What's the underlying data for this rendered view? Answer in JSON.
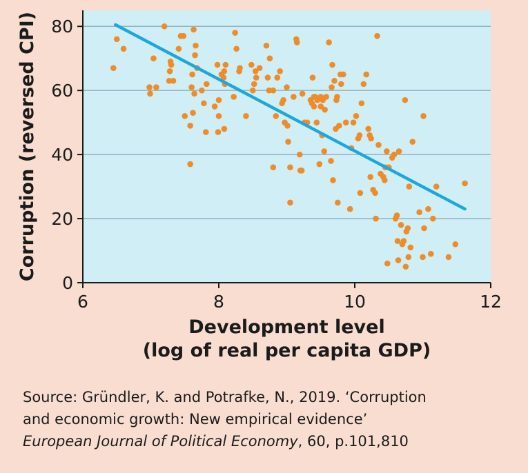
{
  "chart_data": {
    "type": "scatter",
    "xlabel_lines": [
      "Development level",
      "(log of real per capita GDP)"
    ],
    "ylabel": "Corruption (reversed CPI)",
    "xlim": [
      6,
      12
    ],
    "ylim": [
      0,
      85
    ],
    "xticks": [
      6,
      8,
      10,
      12
    ],
    "yticks": [
      0,
      20,
      40,
      60,
      80
    ],
    "grid": "horizontal",
    "colors": {
      "plot_bg": "#cfeef6",
      "points": "#ee8c2a",
      "trend": "#1ea7dd",
      "page_bg": "#f9ddd0"
    },
    "trend_line": {
      "x": [
        6.48,
        11.62
      ],
      "y": [
        80.5,
        23
      ]
    },
    "points": [
      [
        6.45,
        67
      ],
      [
        6.5,
        76
      ],
      [
        6.6,
        73
      ],
      [
        6.98,
        61
      ],
      [
        6.99,
        59
      ],
      [
        7.04,
        70
      ],
      [
        7.08,
        61
      ],
      [
        7.2,
        80
      ],
      [
        7.27,
        63
      ],
      [
        7.28,
        66
      ],
      [
        7.3,
        68
      ],
      [
        7.29,
        69
      ],
      [
        7.33,
        63
      ],
      [
        7.41,
        73
      ],
      [
        7.44,
        77
      ],
      [
        7.48,
        77
      ],
      [
        7.5,
        52
      ],
      [
        7.58,
        37
      ],
      [
        7.6,
        61
      ],
      [
        7.61,
        65
      ],
      [
        7.58,
        49
      ],
      [
        7.63,
        79
      ],
      [
        7.64,
        59
      ],
      [
        7.65,
        71
      ],
      [
        7.66,
        74
      ],
      [
        7.68,
        67
      ],
      [
        7.62,
        53
      ],
      [
        7.75,
        60
      ],
      [
        7.78,
        56
      ],
      [
        7.81,
        47
      ],
      [
        7.82,
        62
      ],
      [
        7.94,
        55
      ],
      [
        7.98,
        68
      ],
      [
        7.99,
        47
      ],
      [
        8.0,
        57
      ],
      [
        8.0,
        52
      ],
      [
        8.04,
        65
      ],
      [
        8.07,
        64
      ],
      [
        8.08,
        66
      ],
      [
        8.08,
        48
      ],
      [
        8.09,
        62
      ],
      [
        8.1,
        68
      ],
      [
        8.22,
        58
      ],
      [
        8.24,
        78
      ],
      [
        8.26,
        73
      ],
      [
        8.3,
        66
      ],
      [
        8.31,
        67
      ],
      [
        8.4,
        52
      ],
      [
        8.48,
        68
      ],
      [
        8.5,
        60
      ],
      [
        8.52,
        62
      ],
      [
        8.54,
        66
      ],
      [
        8.55,
        64
      ],
      [
        8.6,
        67
      ],
      [
        8.7,
        74
      ],
      [
        8.72,
        64
      ],
      [
        8.74,
        60
      ],
      [
        8.75,
        70
      ],
      [
        8.8,
        60
      ],
      [
        8.8,
        36
      ],
      [
        8.84,
        52
      ],
      [
        8.86,
        64
      ],
      [
        8.9,
        66
      ],
      [
        8.93,
        56
      ],
      [
        8.95,
        57
      ],
      [
        8.97,
        50
      ],
      [
        9.0,
        61
      ],
      [
        9.01,
        49
      ],
      [
        9.02,
        44
      ],
      [
        9.05,
        36
      ],
      [
        9.1,
        58
      ],
      [
        9.14,
        76
      ],
      [
        9.15,
        75
      ],
      [
        9.19,
        40
      ],
      [
        9.2,
        35
      ],
      [
        9.22,
        35
      ],
      [
        9.23,
        59
      ],
      [
        9.26,
        50
      ],
      [
        9.05,
        25
      ],
      [
        9.3,
        50
      ],
      [
        9.35,
        57
      ],
      [
        9.37,
        56
      ],
      [
        9.38,
        64
      ],
      [
        9.4,
        55
      ],
      [
        9.4,
        58
      ],
      [
        9.42,
        58
      ],
      [
        9.44,
        50
      ],
      [
        9.45,
        57
      ],
      [
        9.48,
        37
      ],
      [
        9.5,
        58
      ],
      [
        9.5,
        55
      ],
      [
        9.52,
        46
      ],
      [
        9.53,
        57
      ],
      [
        9.55,
        41
      ],
      [
        9.56,
        54
      ],
      [
        9.58,
        58
      ],
      [
        9.62,
        75
      ],
      [
        9.65,
        38
      ],
      [
        9.66,
        61
      ],
      [
        9.67,
        68
      ],
      [
        9.68,
        32
      ],
      [
        9.7,
        63
      ],
      [
        9.72,
        48
      ],
      [
        9.73,
        57
      ],
      [
        9.74,
        58
      ],
      [
        9.75,
        25
      ],
      [
        9.77,
        49
      ],
      [
        9.79,
        65
      ],
      [
        9.8,
        62
      ],
      [
        9.83,
        65
      ],
      [
        9.87,
        50
      ],
      [
        9.93,
        23
      ],
      [
        9.95,
        42
      ],
      [
        9.98,
        50
      ],
      [
        10.02,
        52
      ],
      [
        10.05,
        45
      ],
      [
        10.07,
        46
      ],
      [
        10.08,
        28
      ],
      [
        10.1,
        56
      ],
      [
        10.13,
        62
      ],
      [
        10.17,
        65
      ],
      [
        10.2,
        48
      ],
      [
        10.22,
        46
      ],
      [
        10.23,
        33
      ],
      [
        10.24,
        45
      ],
      [
        10.27,
        29
      ],
      [
        10.3,
        28
      ],
      [
        10.31,
        20
      ],
      [
        10.33,
        77
      ],
      [
        10.35,
        43
      ],
      [
        10.38,
        34
      ],
      [
        10.42,
        33
      ],
      [
        10.44,
        32
      ],
      [
        10.45,
        36
      ],
      [
        10.47,
        41
      ],
      [
        10.48,
        6
      ],
      [
        10.5,
        36
      ],
      [
        10.55,
        39
      ],
      [
        10.58,
        40
      ],
      [
        10.6,
        20
      ],
      [
        10.62,
        21
      ],
      [
        10.63,
        13
      ],
      [
        10.64,
        7
      ],
      [
        10.65,
        41
      ],
      [
        10.68,
        18
      ],
      [
        10.7,
        12
      ],
      [
        10.72,
        13
      ],
      [
        10.74,
        57
      ],
      [
        10.75,
        5
      ],
      [
        10.76,
        16
      ],
      [
        10.78,
        17
      ],
      [
        10.79,
        8
      ],
      [
        10.8,
        30
      ],
      [
        10.82,
        11
      ],
      [
        10.85,
        44
      ],
      [
        10.95,
        22
      ],
      [
        11.0,
        8
      ],
      [
        11.01,
        52
      ],
      [
        11.02,
        17
      ],
      [
        11.08,
        23
      ],
      [
        11.12,
        9
      ],
      [
        11.15,
        20
      ],
      [
        11.2,
        30
      ],
      [
        11.38,
        8
      ],
      [
        11.48,
        12
      ],
      [
        11.62,
        31
      ]
    ]
  },
  "source": {
    "line1": "Source: Gründler, K. and Potrafke, N., 2019. ‘Corruption",
    "line2": "and economic growth: New empirical evidence’",
    "line3_italic": "European Journal of Political Economy",
    "line3_rest": ", 60, p.101,810"
  }
}
